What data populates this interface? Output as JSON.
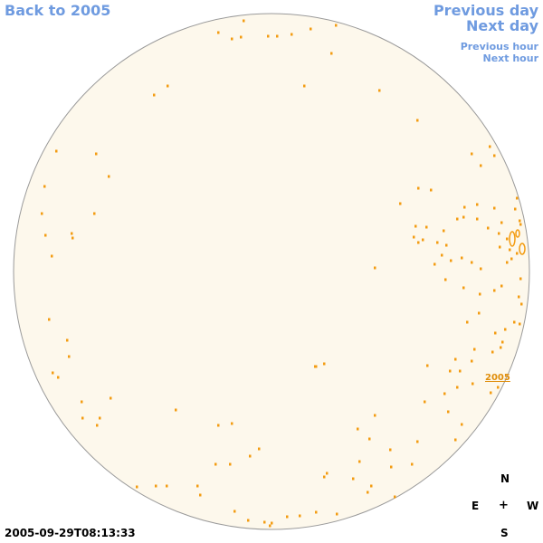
{
  "theme": {
    "link_color": "#6f9be0",
    "disk_fill": "#fdf8ec",
    "disk_stroke": "#9a9a9a",
    "feature_color": "#f39c12",
    "label_color": "#e08e0b"
  },
  "nav": {
    "back_label": "Back to 2005",
    "previous_day": "Previous day",
    "next_day": "Next day",
    "previous_hour": "Previous hour",
    "next_hour": "Next hour"
  },
  "timestamp": "2005-09-29T08:13:33",
  "compass": {
    "north": "N",
    "south": "S",
    "east": "E",
    "west": "W",
    "center": "+"
  },
  "active_region_label": "2005"
}
